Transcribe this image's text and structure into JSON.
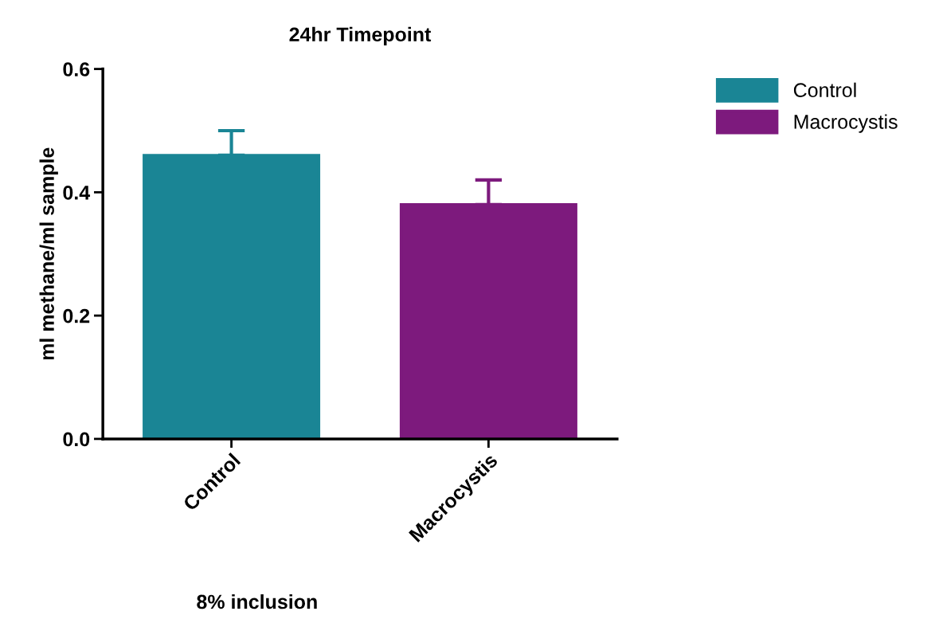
{
  "chart_data": {
    "type": "bar",
    "title": "24hr Timepoint",
    "xlabel": "8% inclusion",
    "ylabel": "ml methane/ml sample",
    "categories": [
      "Control",
      "Macrocystis"
    ],
    "series": [
      {
        "name": "Control",
        "color": "#1a8595",
        "values": [
          0.46,
          null
        ],
        "errors": [
          [
            0.46,
            0.5
          ],
          null
        ]
      },
      {
        "name": "Macrocystis",
        "color": "#7d1a7d",
        "values": [
          null,
          0.38
        ],
        "errors": [
          null,
          [
            0.38,
            0.42
          ]
        ]
      }
    ],
    "ylim": [
      0,
      0.6
    ],
    "yticks": [
      {
        "value": 0,
        "label": "0.0"
      },
      {
        "value": 0.2,
        "label": "0.2"
      },
      {
        "value": 0.4,
        "label": "0.4"
      },
      {
        "value": 0.6,
        "label": "0.6"
      }
    ],
    "grid": false,
    "legend": "top right"
  }
}
